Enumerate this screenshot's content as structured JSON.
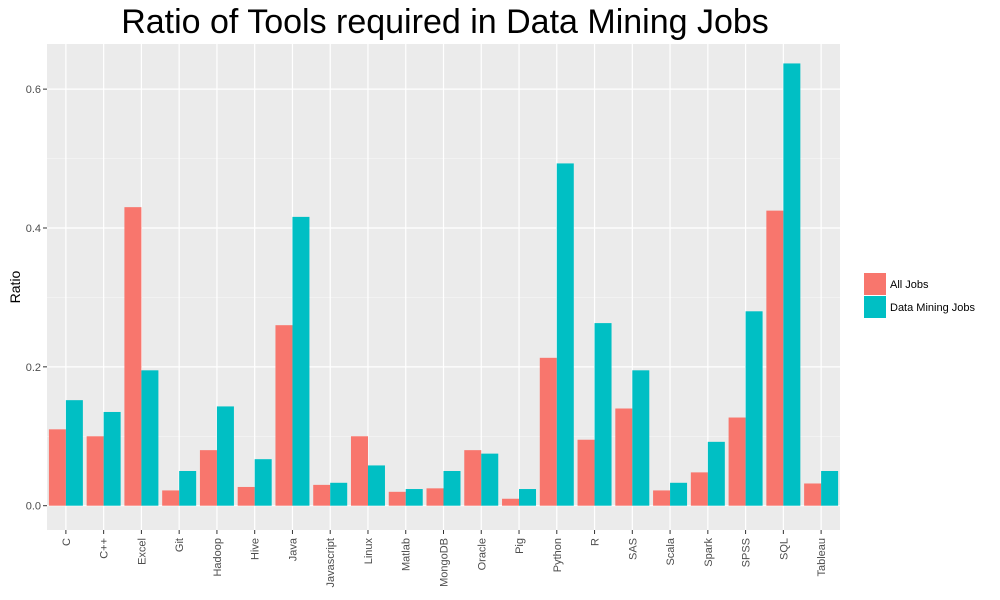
{
  "chart_data": {
    "type": "bar",
    "title": "Ratio of Tools required in Data Mining Jobs",
    "xlabel": "",
    "ylabel": "Ratio",
    "ylim": [
      -0.035,
      0.665
    ],
    "yticks": [
      0.0,
      0.2,
      0.4,
      0.6
    ],
    "ytick_labels": [
      "0.0",
      "0.2",
      "0.4",
      "0.6"
    ],
    "grid": true,
    "legend_position": "right",
    "categories": [
      "C",
      "C++",
      "Excel",
      "Git",
      "Hadoop",
      "Hive",
      "Java",
      "Javascript",
      "Linux",
      "Matlab",
      "MongoDB",
      "Oracle",
      "Pig",
      "Python",
      "R",
      "SAS",
      "Scala",
      "Spark",
      "SPSS",
      "SQL",
      "Tableau"
    ],
    "series": [
      {
        "name": "All Jobs",
        "color": "#F8766D",
        "values": [
          0.11,
          0.1,
          0.43,
          0.022,
          0.08,
          0.027,
          0.26,
          0.03,
          0.1,
          0.02,
          0.025,
          0.08,
          0.01,
          0.213,
          0.095,
          0.14,
          0.022,
          0.048,
          0.127,
          0.425,
          0.032
        ]
      },
      {
        "name": "Data Mining Jobs",
        "color": "#00BFC4",
        "values": [
          0.152,
          0.135,
          0.195,
          0.05,
          0.143,
          0.067,
          0.416,
          0.033,
          0.058,
          0.024,
          0.05,
          0.075,
          0.024,
          0.493,
          0.263,
          0.195,
          0.033,
          0.092,
          0.28,
          0.637,
          0.05
        ]
      }
    ]
  }
}
